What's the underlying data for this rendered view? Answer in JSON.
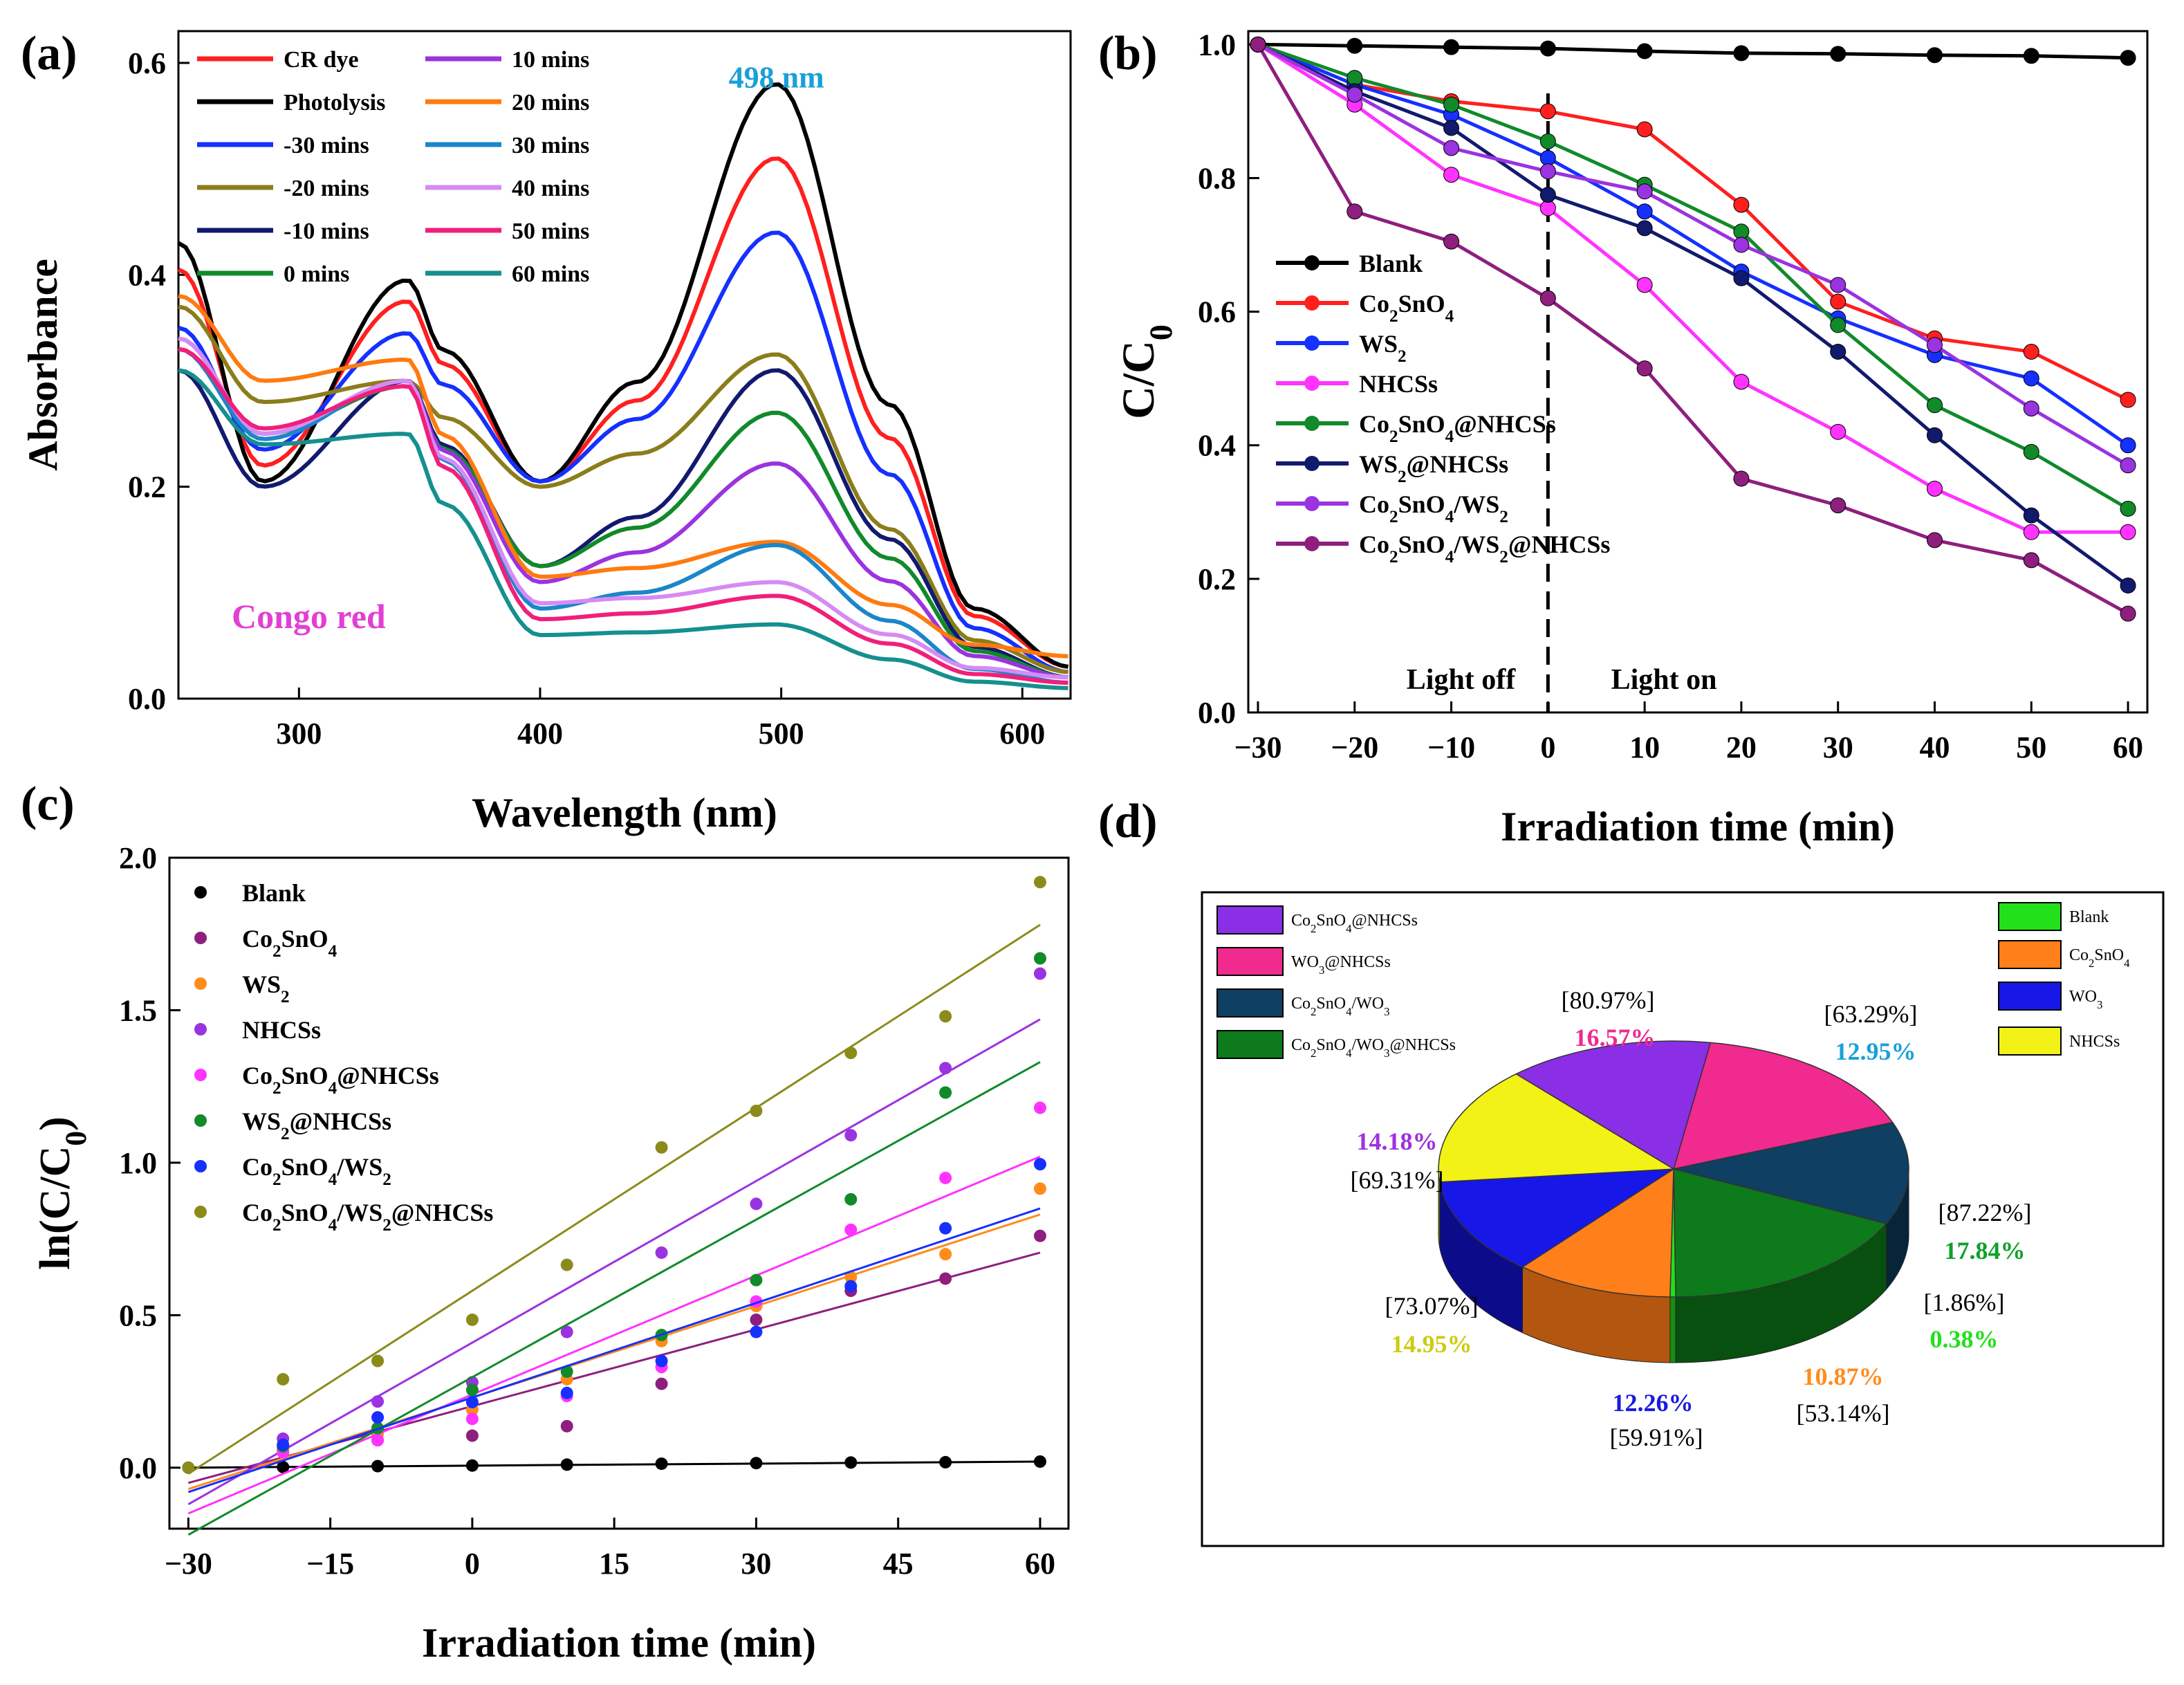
{
  "panels": {
    "a": {
      "letter": "(a)"
    },
    "b": {
      "letter": "(b)"
    },
    "c": {
      "letter": "(c)"
    },
    "d": {
      "letter": "(d)"
    }
  },
  "chart_data": [
    {
      "id": "a",
      "type": "line",
      "xlabel": "Wavelength (nm)",
      "ylabel": "Absorbance",
      "xlim": [
        250,
        620
      ],
      "ylim": [
        0,
        0.63
      ],
      "xticks": [
        300,
        400,
        500,
        600
      ],
      "yticks": [
        0.0,
        0.2,
        0.4,
        0.6
      ],
      "annotations": [
        {
          "text": "498 nm",
          "x": 500,
          "y": 0.59,
          "color": "#1aa0d8"
        },
        {
          "text": "Congo red",
          "x": 285,
          "y": 0.075,
          "color": "#e23fd4"
        }
      ],
      "series": [
        {
          "name": "CR dye",
          "color": "#ff1f1f",
          "b1": 0.375,
          "b2": 0.51,
          "min1": 0.22,
          "min2": 0.205,
          "start": 0.405,
          "end": 0.03
        },
        {
          "name": "Photolysis",
          "color": "#000000",
          "b1": 0.395,
          "b2": 0.58,
          "min1": 0.205,
          "min2": 0.205,
          "start": 0.43,
          "end": 0.03
        },
        {
          "name": "-30 mins",
          "color": "#1530ff",
          "b1": 0.345,
          "b2": 0.44,
          "min1": 0.235,
          "min2": 0.205,
          "start": 0.35,
          "end": 0.025
        },
        {
          "name": "-20 mins",
          "color": "#8b7d1b",
          "b1": 0.3,
          "b2": 0.325,
          "min1": 0.28,
          "min2": 0.2,
          "start": 0.37,
          "end": 0.025
        },
        {
          "name": "-10 mins",
          "color": "#121a6e",
          "b1": 0.3,
          "b2": 0.31,
          "min1": 0.2,
          "min2": 0.125,
          "start": 0.31,
          "end": 0.02
        },
        {
          "name": "0 mins",
          "color": "#118a2a",
          "b1": 0.295,
          "b2": 0.27,
          "min1": 0.25,
          "min2": 0.125,
          "start": 0.33,
          "end": 0.02
        },
        {
          "name": "10 mins",
          "color": "#9a33e0",
          "b1": 0.3,
          "b2": 0.222,
          "min1": 0.25,
          "min2": 0.11,
          "start": 0.34,
          "end": 0.02
        },
        {
          "name": "20 mins",
          "color": "#ff7a0f",
          "b1": 0.32,
          "b2": 0.148,
          "min1": 0.3,
          "min2": 0.115,
          "start": 0.38,
          "end": 0.04
        },
        {
          "name": "30 mins",
          "color": "#1b86c9",
          "b1": 0.3,
          "b2": 0.145,
          "min1": 0.245,
          "min2": 0.085,
          "start": 0.33,
          "end": 0.015
        },
        {
          "name": "40 mins",
          "color": "#d58bf5",
          "b1": 0.3,
          "b2": 0.11,
          "min1": 0.25,
          "min2": 0.09,
          "start": 0.34,
          "end": 0.02
        },
        {
          "name": "50 mins",
          "color": "#f0207a",
          "b1": 0.295,
          "b2": 0.097,
          "min1": 0.255,
          "min2": 0.075,
          "start": 0.33,
          "end": 0.015
        },
        {
          "name": "60 mins",
          "color": "#158f8f",
          "b1": 0.25,
          "b2": 0.07,
          "min1": 0.24,
          "min2": 0.06,
          "start": 0.31,
          "end": 0.01
        }
      ]
    },
    {
      "id": "b",
      "type": "line",
      "xlabel": "Irradiation time (min)",
      "ylabel": "C/C0",
      "xlim": [
        -31,
        62
      ],
      "ylim": [
        0,
        1.02
      ],
      "xticks": [
        -30,
        -20,
        -10,
        0,
        10,
        20,
        30,
        40,
        50,
        60
      ],
      "xticklabels": [
        "−30",
        "−20",
        "−10",
        "0",
        "10",
        "20",
        "30",
        "40",
        "50",
        "60"
      ],
      "yticks": [
        0.0,
        0.2,
        0.4,
        0.6,
        0.8,
        1.0
      ],
      "annotations": [
        {
          "text": "Light off",
          "x": -9,
          "y": 0.035
        },
        {
          "text": "Light on",
          "x": 12,
          "y": 0.035
        }
      ],
      "x": [
        -30,
        -20,
        -10,
        0,
        10,
        20,
        30,
        40,
        50,
        60
      ],
      "series": [
        {
          "name": "Blank",
          "color": "#000000",
          "values": [
            1.0,
            0.998,
            0.996,
            0.994,
            0.99,
            0.987,
            0.986,
            0.984,
            0.983,
            0.98
          ]
        },
        {
          "name": "Co2SnO4",
          "color": "#ff1f1f",
          "values": [
            1.0,
            0.94,
            0.915,
            0.9,
            0.873,
            0.76,
            0.615,
            0.56,
            0.54,
            0.468
          ]
        },
        {
          "name": "WS2",
          "color": "#1530ff",
          "values": [
            1.0,
            0.94,
            0.895,
            0.83,
            0.75,
            0.66,
            0.59,
            0.535,
            0.5,
            0.4
          ]
        },
        {
          "name": "NHCSs",
          "color": "#ff33ff",
          "values": [
            1.0,
            0.91,
            0.805,
            0.755,
            0.64,
            0.495,
            0.42,
            0.335,
            0.27,
            0.27
          ]
        },
        {
          "name": "Co2SnO4@NHCSs",
          "color": "#118a2a",
          "values": [
            1.0,
            0.95,
            0.91,
            0.855,
            0.79,
            0.72,
            0.58,
            0.46,
            0.39,
            0.305
          ]
        },
        {
          "name": "WS2@NHCSs",
          "color": "#121a6e",
          "values": [
            1.0,
            0.93,
            0.875,
            0.775,
            0.725,
            0.65,
            0.54,
            0.415,
            0.295,
            0.19
          ]
        },
        {
          "name": "Co2SnO4/WS2",
          "color": "#9a33e0",
          "values": [
            1.0,
            0.925,
            0.845,
            0.81,
            0.78,
            0.7,
            0.64,
            0.55,
            0.455,
            0.37
          ]
        },
        {
          "name": "Co2SnO4/WS2@NHCSs",
          "color": "#8e1f7e",
          "values": [
            1.0,
            0.75,
            0.705,
            0.62,
            0.515,
            0.35,
            0.31,
            0.258,
            0.228,
            0.148
          ]
        }
      ]
    },
    {
      "id": "c",
      "type": "scatter",
      "xlabel": "Irradiation time (min)",
      "ylabel": "ln(C/C0)",
      "xlim": [
        -32,
        63
      ],
      "ylim": [
        -0.2,
        2.0
      ],
      "xticks": [
        -30,
        -15,
        0,
        15,
        30,
        45,
        60
      ],
      "xticklabels": [
        "−30",
        "−15",
        "0",
        "15",
        "30",
        "45",
        "60"
      ],
      "yticks": [
        0.0,
        0.5,
        1.0,
        1.5,
        2.0
      ],
      "x": [
        -30,
        -20,
        -10,
        0,
        10,
        20,
        30,
        40,
        50,
        60
      ],
      "series": [
        {
          "name": "Blank",
          "color": "#000000",
          "values": [
            0.0,
            0.002,
            0.005,
            0.007,
            0.01,
            0.013,
            0.015,
            0.017,
            0.018,
            0.02
          ],
          "fit": [
            [
              -30,
              0.0
            ],
            [
              60,
              0.02
            ]
          ]
        },
        {
          "name": "Co2SnO4",
          "color": "#8e1f7e",
          "values": [
            null,
            0.06,
            0.09,
            0.105,
            0.136,
            0.275,
            0.485,
            0.58,
            0.62,
            0.76
          ],
          "fit": [
            [
              -30,
              -0.05
            ],
            [
              60,
              0.705
            ]
          ]
        },
        {
          "name": "WS2",
          "color": "#ff8c1a",
          "values": [
            null,
            0.06,
            0.11,
            0.19,
            0.29,
            0.415,
            0.53,
            0.625,
            0.7,
            0.915
          ],
          "fit": [
            [
              -30,
              -0.07
            ],
            [
              60,
              0.83
            ]
          ]
        },
        {
          "name": "NHCSs",
          "color": "#9a33e0",
          "values": [
            null,
            0.095,
            0.217,
            0.28,
            0.445,
            0.705,
            0.865,
            1.09,
            1.31,
            1.62
          ],
          "fit": [
            [
              -30,
              -0.12
            ],
            [
              60,
              1.47
            ]
          ]
        },
        {
          "name": "Co2SnO4@NHCSs",
          "color": "#ff33ff",
          "values": [
            null,
            0.05,
            0.09,
            0.16,
            0.235,
            0.33,
            0.545,
            0.78,
            0.95,
            1.18
          ],
          "fit": [
            [
              -30,
              -0.15
            ],
            [
              60,
              1.02
            ]
          ]
        },
        {
          "name": "WS2@NHCSs",
          "color": "#118a2a",
          "values": [
            null,
            0.07,
            0.13,
            0.255,
            0.315,
            0.435,
            0.615,
            0.88,
            1.23,
            1.67
          ],
          "fit": [
            [
              -30,
              -0.22
            ],
            [
              60,
              1.33
            ]
          ]
        },
        {
          "name": "Co2SnO4/WS2",
          "color": "#1530ff",
          "values": [
            null,
            0.075,
            0.165,
            0.215,
            0.245,
            0.35,
            0.445,
            0.595,
            0.785,
            0.995
          ],
          "fit": [
            [
              -30,
              -0.08
            ],
            [
              60,
              0.85
            ]
          ]
        },
        {
          "name": "Co2SnO4/WS2@NHCSs",
          "color": "#8b8b1b",
          "values": [
            0.0,
            0.29,
            0.35,
            0.485,
            0.665,
            1.05,
            1.17,
            1.36,
            1.48,
            1.92
          ],
          "fit": [
            [
              -30,
              -0.02
            ],
            [
              60,
              1.78
            ]
          ]
        }
      ]
    },
    {
      "id": "d",
      "type": "pie",
      "legend": [
        {
          "name": "Co2SnO4@NHCSs",
          "color": "#8b2fe6"
        },
        {
          "name": "WO3@NHCSs",
          "color": "#f02a8e"
        },
        {
          "name": "Co2SnO4/WO3",
          "color": "#0f3f62"
        },
        {
          "name": "Co2SnO4/WO3@NHCSs",
          "color": "#0d7a1c"
        },
        {
          "name": "Blank",
          "color": "#22e01a"
        },
        {
          "name": "Co2SnO4",
          "color": "#ff7f1a"
        },
        {
          "name": "WO3",
          "color": "#1717e8"
        },
        {
          "name": "NHCSs",
          "color": "#f2f217"
        }
      ],
      "slices": [
        {
          "name": "WO3@NHCSs",
          "value": 16.57,
          "label": "16.57%",
          "bracket": "[80.97%]",
          "color": "#f02a8e",
          "dark": "#a01a5e",
          "labelColor": "#f02a8e"
        },
        {
          "name": "Co2SnO4/WO3",
          "value": 12.95,
          "label": "12.95%",
          "bracket": "[63.29%]",
          "color": "#0f3f62",
          "dark": "#082438",
          "labelColor": "#1aa0d8"
        },
        {
          "name": "Co2SnO4/WO3@NHCSs",
          "value": 17.84,
          "label": "17.84%",
          "bracket": "[87.22%]",
          "color": "#0d7a1c",
          "dark": "#075010",
          "labelColor": "#11a02a"
        },
        {
          "name": "Blank",
          "value": 0.38,
          "label": "0.38%",
          "bracket": "[1.86%]",
          "color": "#22e01a",
          "dark": "#159010",
          "labelColor": "#22e01a"
        },
        {
          "name": "Co2SnO4",
          "value": 10.87,
          "label": "10.87%",
          "bracket": "[53.14%]",
          "color": "#ff7f1a",
          "dark": "#b3560f",
          "labelColor": "#ff8c1a"
        },
        {
          "name": "WO3",
          "value": 12.26,
          "label": "12.26%",
          "bracket": "[59.91%]",
          "color": "#1717e8",
          "dark": "#0c0c8a",
          "labelColor": "#1a1ae0"
        },
        {
          "name": "NHCSs",
          "value": 14.95,
          "label": "14.95%",
          "bracket": "[73.07%]",
          "color": "#f2f217",
          "dark": "#9a9a0a",
          "labelColor": "#cccc10"
        },
        {
          "name": "Co2SnO4@NHCSs",
          "value": 14.18,
          "label": "14.18%",
          "bracket": "[69.31%]",
          "color": "#8b2fe6",
          "dark": "#5a1a9a",
          "labelColor": "#a030e0"
        }
      ]
    }
  ]
}
